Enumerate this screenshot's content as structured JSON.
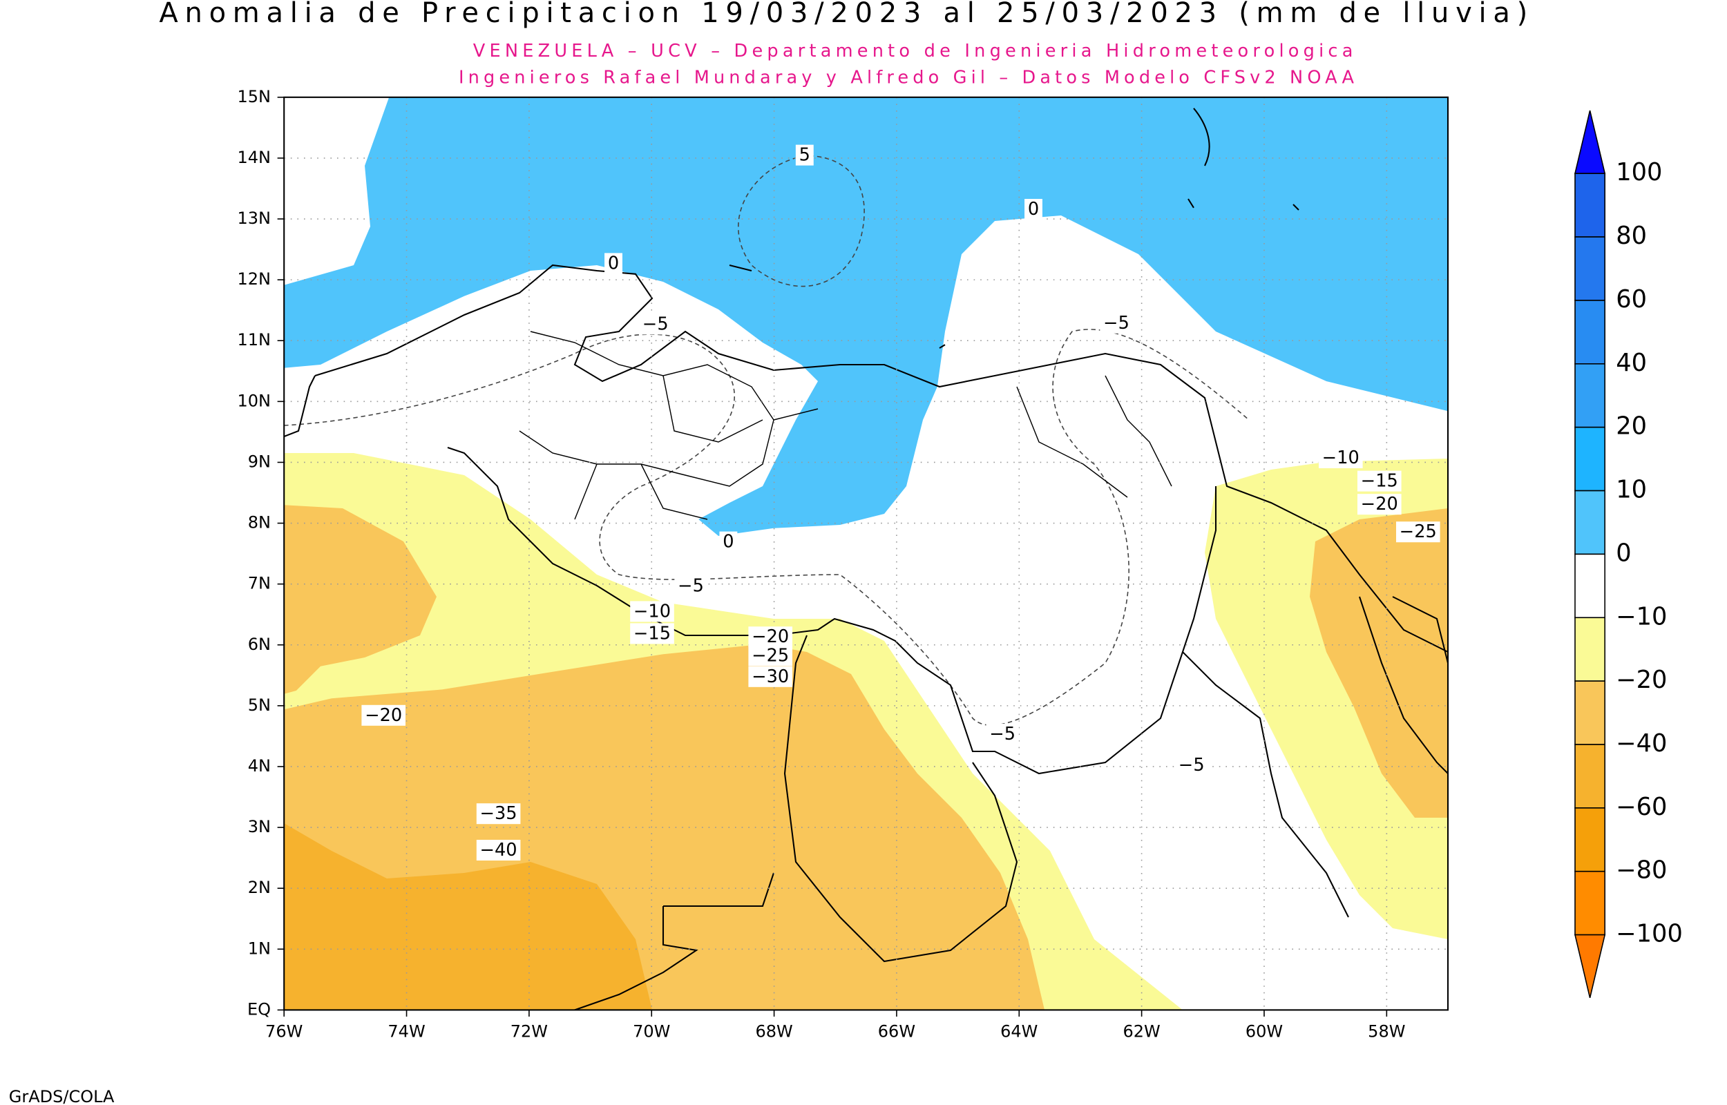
{
  "map": {
    "title": "Anomalia de Precipitacion 19/03/2023 al 25/03/2023 (mm de lluvia)",
    "subtitle": [
      "VENEZUELA – UCV – Departamento de Ingenieria Hidrometeorologica",
      "Ingenieros Rafael Mundaray y Alfredo Gil – Datos Modelo CFSv2 NOAA"
    ],
    "latitude_labels": [
      "EQ",
      "1N",
      "2N",
      "3N",
      "4N",
      "5N",
      "6N",
      "7N",
      "8N",
      "9N",
      "10N",
      "11N",
      "12N",
      "13N",
      "14N",
      "15N"
    ],
    "longitude_labels": [
      "76W",
      "74W",
      "72W",
      "70W",
      "68W",
      "66W",
      "64W",
      "62W",
      "60W",
      "58W"
    ],
    "contour_labels": [
      "5",
      "0",
      "0",
      "−5",
      "−5",
      "0",
      "−5",
      "−10",
      "−15",
      "−20",
      "−25",
      "−30",
      "−20",
      "−5",
      "−5",
      "−35",
      "−40",
      "−10",
      "−15",
      "−20",
      "−25"
    ],
    "colorbar_labels": [
      "100",
      "80",
      "60",
      "40",
      "20",
      "10",
      "0",
      "−10",
      "−20",
      "−40",
      "−60",
      "−80",
      "−100"
    ],
    "credit": "GrADS/COLA"
  }
}
